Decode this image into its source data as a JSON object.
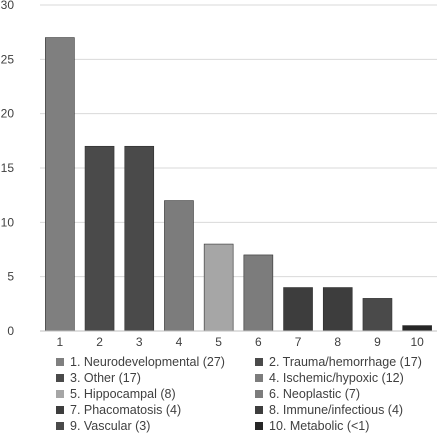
{
  "chart_data": {
    "type": "bar",
    "title": "",
    "xlabel": "",
    "ylabel": "",
    "ylim": [
      0,
      30
    ],
    "yticks": [
      0,
      5,
      10,
      15,
      20,
      25,
      30
    ],
    "grid": true,
    "legend_position": "bottom",
    "categories": [
      "1",
      "2",
      "3",
      "4",
      "5",
      "6",
      "7",
      "8",
      "9",
      "10"
    ],
    "values": [
      27,
      17,
      17,
      12,
      8,
      7,
      4,
      4,
      3,
      0.5
    ],
    "colors": [
      "#7f7f7f",
      "#4a4a4a",
      "#4a4a4a",
      "#7c7c7c",
      "#a6a6a6",
      "#7c7c7c",
      "#3d3d3d",
      "#3d3d3d",
      "#4a4a4a",
      "#262626"
    ],
    "legend": [
      "1. Neurodevelopmental (27)",
      "2. Trauma/hemorrhage (17)",
      "3. Other (17)",
      "4. Ischemic/hypoxic (12)",
      "5. Hippocampal (8)",
      "6. Neoplastic (7)",
      "7. Phacomatosis (4)",
      "8. Immune/infectious (4)",
      "9. Vascular (3)",
      "10. Metabolic (<1)"
    ]
  }
}
